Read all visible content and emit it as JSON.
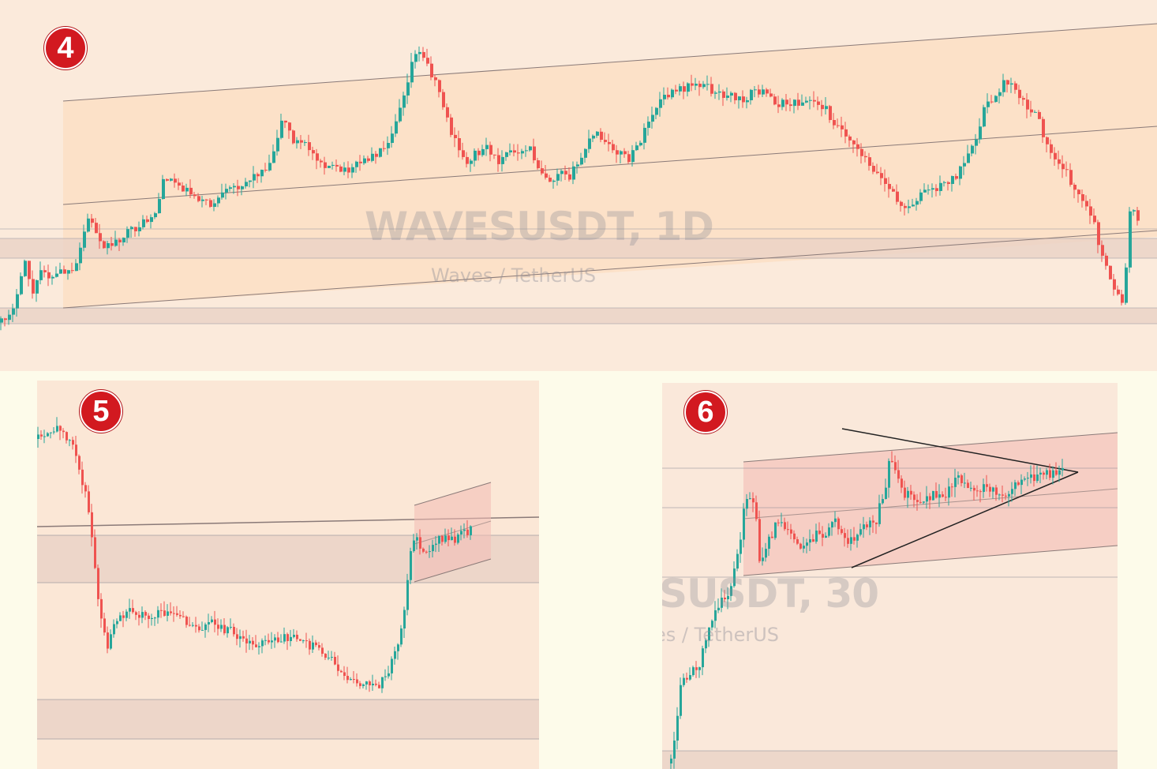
{
  "colors": {
    "up": "#26a69a",
    "down": "#ef5350",
    "badge": "#d21920",
    "channel_fill": "#fdd9b8",
    "zone_fill": "#ead2c6",
    "pattern_fill": "#f3bcb5",
    "line": "#8a7a78"
  },
  "panels": [
    {
      "badge": "4",
      "watermark": {
        "title": "WAVESUSDT, 1D",
        "subtitle": "Waves / TetherUS"
      }
    },
    {
      "badge": "5"
    },
    {
      "badge": "6",
      "watermark": {
        "title": "SUSDT, 30",
        "subtitle": "es / TetherUS"
      }
    }
  ],
  "chart_data": [
    {
      "type": "candlestick",
      "title": "WAVESUSDT, 1D",
      "subtitle": "Waves / TetherUS",
      "series": [
        {
          "name": "price",
          "path": [
            [
              0,
              97
            ],
            [
              2,
              93
            ],
            [
              4,
              87
            ],
            [
              5,
              75
            ],
            [
              7,
              88
            ],
            [
              9,
              78
            ],
            [
              11,
              83
            ],
            [
              13,
              80
            ],
            [
              16,
              81
            ],
            [
              19,
              62
            ],
            [
              23,
              72
            ],
            [
              27,
              68
            ],
            [
              29,
              66
            ],
            [
              32,
              63
            ],
            [
              34,
              60
            ],
            [
              36,
              48
            ],
            [
              40,
              52
            ],
            [
              42,
              54
            ],
            [
              46,
              58
            ],
            [
              50,
              53
            ],
            [
              55,
              49
            ],
            [
              59,
              44
            ],
            [
              62,
              28
            ],
            [
              64,
              36
            ],
            [
              67,
              38
            ],
            [
              71,
              44
            ],
            [
              75,
              47
            ],
            [
              77,
              45
            ],
            [
              80,
              43
            ],
            [
              84,
              39
            ],
            [
              86,
              33
            ],
            [
              87,
              28
            ],
            [
              89,
              18
            ],
            [
              91,
              6
            ],
            [
              93,
              9
            ],
            [
              96,
              18
            ],
            [
              99,
              34
            ],
            [
              102,
              44
            ],
            [
              104,
              41
            ],
            [
              107,
              38
            ],
            [
              109,
              44
            ],
            [
              111,
              39
            ],
            [
              114,
              42
            ],
            [
              116,
              38
            ],
            [
              118,
              45
            ],
            [
              121,
              50
            ],
            [
              123,
              45
            ],
            [
              125,
              48
            ],
            [
              127,
              44
            ],
            [
              129,
              37
            ],
            [
              131,
              34
            ],
            [
              133,
              38
            ],
            [
              136,
              40
            ],
            [
              138,
              43
            ],
            [
              141,
              35
            ],
            [
              143,
              28
            ],
            [
              145,
              23
            ],
            [
              148,
              20
            ],
            [
              150,
              19
            ],
            [
              153,
              17
            ],
            [
              155,
              18
            ],
            [
              157,
              21
            ],
            [
              160,
              21
            ],
            [
              163,
              23
            ],
            [
              166,
              19
            ],
            [
              168,
              21
            ],
            [
              171,
              24
            ],
            [
              175,
              24
            ],
            [
              178,
              23
            ],
            [
              181,
              25
            ],
            [
              183,
              30
            ],
            [
              186,
              34
            ],
            [
              188,
              38
            ],
            [
              191,
              44
            ],
            [
              193,
              48
            ],
            [
              195,
              52
            ],
            [
              197,
              56
            ],
            [
              199,
              60
            ],
            [
              201,
              56
            ],
            [
              203,
              53
            ],
            [
              206,
              52
            ],
            [
              208,
              50
            ],
            [
              210,
              48
            ],
            [
              212,
              44
            ],
            [
              214,
              38
            ],
            [
              216,
              26
            ],
            [
              218,
              23
            ],
            [
              220,
              18
            ],
            [
              222,
              16
            ],
            [
              224,
              21
            ],
            [
              226,
              26
            ],
            [
              228,
              29
            ],
            [
              230,
              38
            ],
            [
              232,
              42
            ],
            [
              234,
              46
            ],
            [
              236,
              52
            ],
            [
              238,
              58
            ],
            [
              240,
              62
            ],
            [
              242,
              74
            ],
            [
              244,
              84
            ],
            [
              246,
              88
            ],
            [
              247,
              92
            ],
            [
              248,
              60
            ],
            [
              249,
              58
            ],
            [
              250,
              62
            ]
          ]
        }
      ],
      "annotations": [
        "rising channel",
        "horizontal support zones"
      ]
    },
    {
      "type": "candlestick",
      "series": [
        {
          "name": "price",
          "path": [
            [
              0,
              6
            ],
            [
              3,
              5
            ],
            [
              5,
              2
            ],
            [
              8,
              8
            ],
            [
              10,
              18
            ],
            [
              12,
              30
            ],
            [
              14,
              60
            ],
            [
              16,
              72
            ],
            [
              18,
              64
            ],
            [
              20,
              62
            ],
            [
              22,
              60
            ],
            [
              24,
              62
            ],
            [
              26,
              63
            ],
            [
              28,
              61
            ],
            [
              30,
              62
            ],
            [
              32,
              62
            ],
            [
              35,
              65
            ],
            [
              38,
              66
            ],
            [
              40,
              64
            ],
            [
              42,
              66
            ],
            [
              45,
              67
            ],
            [
              48,
              70
            ],
            [
              51,
              71
            ],
            [
              54,
              70
            ],
            [
              57,
              69
            ],
            [
              60,
              68
            ],
            [
              62,
              71
            ],
            [
              64,
              72
            ],
            [
              66,
              74
            ],
            [
              68,
              76
            ],
            [
              70,
              80
            ],
            [
              72,
              82
            ],
            [
              74,
              84
            ],
            [
              76,
              84
            ],
            [
              78,
              85
            ],
            [
              80,
              82
            ],
            [
              82,
              76
            ],
            [
              84,
              66
            ],
            [
              85,
              58
            ],
            [
              86,
              42
            ],
            [
              87,
              36
            ],
            [
              88,
              40
            ],
            [
              90,
              42
            ],
            [
              92,
              38
            ],
            [
              94,
              37
            ],
            [
              96,
              38
            ],
            [
              98,
              36
            ],
            [
              100,
              35
            ]
          ]
        }
      ],
      "annotations": [
        "ascending channel at breakout"
      ]
    },
    {
      "type": "candlestick",
      "title": "SUSDT, 30",
      "subtitle": "es / TetherUS",
      "series": [
        {
          "name": "price",
          "path": [
            [
              0,
              100
            ],
            [
              2,
              78
            ],
            [
              4,
              74
            ],
            [
              6,
              72
            ],
            [
              8,
              60
            ],
            [
              10,
              54
            ],
            [
              12,
              52
            ],
            [
              14,
              43
            ],
            [
              16,
              24
            ],
            [
              18,
              26
            ],
            [
              19,
              42
            ],
            [
              21,
              36
            ],
            [
              23,
              30
            ],
            [
              25,
              32
            ],
            [
              27,
              36
            ],
            [
              29,
              38
            ],
            [
              31,
              34
            ],
            [
              33,
              36
            ],
            [
              35,
              30
            ],
            [
              37,
              33
            ],
            [
              38,
              36
            ],
            [
              40,
              34
            ],
            [
              42,
              31
            ],
            [
              44,
              30
            ],
            [
              46,
              20
            ],
            [
              47,
              12
            ],
            [
              48,
              14
            ],
            [
              50,
              22
            ],
            [
              52,
              24
            ],
            [
              54,
              26
            ],
            [
              56,
              22
            ],
            [
              58,
              24
            ],
            [
              60,
              20
            ],
            [
              62,
              18
            ],
            [
              64,
              20
            ],
            [
              66,
              22
            ],
            [
              68,
              20
            ],
            [
              70,
              22
            ],
            [
              72,
              22
            ],
            [
              74,
              20
            ],
            [
              76,
              18
            ],
            [
              78,
              18
            ],
            [
              80,
              17
            ],
            [
              82,
              16
            ],
            [
              84,
              15
            ]
          ]
        }
      ],
      "annotations": [
        "symmetrical triangle",
        "rising channel"
      ]
    }
  ]
}
